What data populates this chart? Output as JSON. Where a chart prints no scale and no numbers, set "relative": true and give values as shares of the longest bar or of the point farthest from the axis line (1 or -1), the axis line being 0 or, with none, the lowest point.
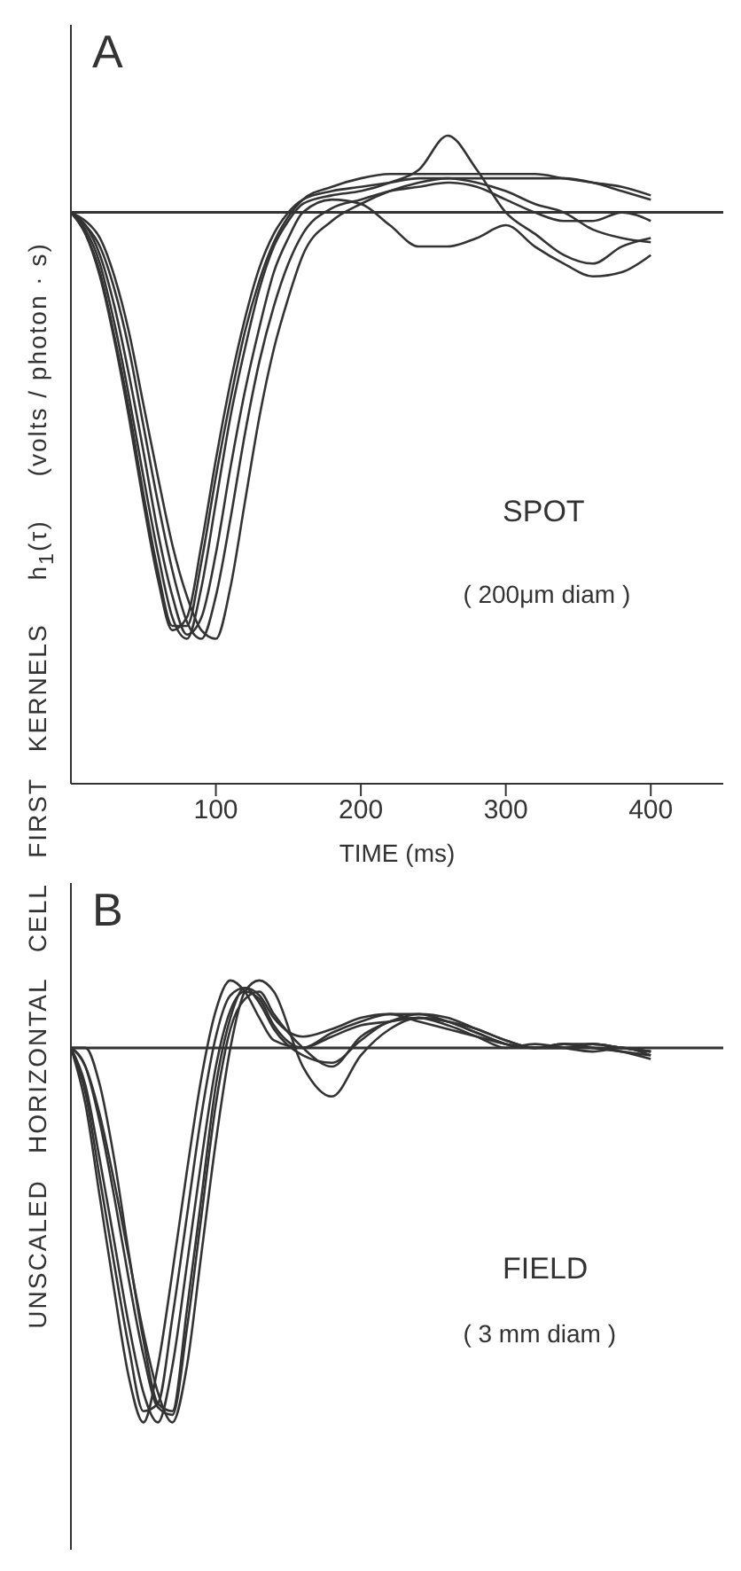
{
  "chart_data": [
    {
      "type": "line",
      "title": "A",
      "xlabel": "TIME (ms)",
      "ylabel": "UNSCALED   HORIZONTAL   CELL   FIRST   KERNELS     h$_{1}$(τ)     (volts / photon · s)",
      "relative": true,
      "marker": "none",
      "xlim": [
        0,
        450
      ],
      "xticks": [
        100,
        200,
        300,
        400
      ],
      "ref_lines": [
        {
          "axis": "y",
          "value": 0,
          "color": "#333333"
        }
      ],
      "annotations": [
        "SPOT",
        "( 200μm diam )"
      ],
      "x": [
        0,
        10,
        20,
        30,
        40,
        50,
        60,
        70,
        80,
        90,
        100,
        110,
        120,
        130,
        140,
        150,
        160,
        180,
        200,
        220,
        240,
        260,
        280,
        300,
        320,
        340,
        360,
        380,
        400
      ],
      "series": [
        {
          "color": "#333333",
          "values": [
            0,
            -0.05,
            -0.15,
            -0.3,
            -0.48,
            -0.68,
            -0.86,
            -0.98,
            -0.95,
            -0.78,
            -0.58,
            -0.4,
            -0.25,
            -0.13,
            -0.05,
            0,
            0.03,
            0.05,
            0.06,
            0.07,
            0.08,
            0.08,
            0.08,
            0.08,
            0.08,
            0.08,
            0.07,
            0.05,
            0.03
          ]
        },
        {
          "color": "#333333",
          "values": [
            0,
            -0.04,
            -0.12,
            -0.26,
            -0.43,
            -0.62,
            -0.8,
            -0.95,
            -1,
            -0.88,
            -0.68,
            -0.48,
            -0.32,
            -0.18,
            -0.08,
            -0.02,
            0.02,
            0.04,
            0.05,
            0.07,
            0.1,
            0.18,
            0.1,
            0.0,
            -0.05,
            -0.1,
            -0.12,
            -0.08,
            -0.06
          ]
        },
        {
          "color": "#333333",
          "values": [
            0,
            -0.03,
            -0.1,
            -0.22,
            -0.38,
            -0.56,
            -0.75,
            -0.9,
            -0.99,
            -0.95,
            -0.8,
            -0.6,
            -0.42,
            -0.27,
            -0.14,
            -0.06,
            0,
            0.03,
            0.02,
            -0.03,
            -0.08,
            -0.08,
            -0.06,
            -0.03,
            -0.08,
            -0.12,
            -0.15,
            -0.14,
            -0.1
          ]
        },
        {
          "color": "#333333",
          "values": [
            0,
            -0.03,
            -0.08,
            -0.18,
            -0.32,
            -0.5,
            -0.68,
            -0.84,
            -0.96,
            -1,
            -0.9,
            -0.72,
            -0.52,
            -0.35,
            -0.22,
            -0.12,
            -0.05,
            0.01,
            0.03,
            0.05,
            0.06,
            0.07,
            0.06,
            0.03,
            0.0,
            -0.02,
            -0.02,
            0.0,
            -0.02
          ]
        },
        {
          "color": "#333333",
          "values": [
            0,
            -0.02,
            -0.06,
            -0.15,
            -0.28,
            -0.45,
            -0.62,
            -0.78,
            -0.9,
            -0.98,
            -1,
            -0.88,
            -0.68,
            -0.48,
            -0.32,
            -0.2,
            -0.1,
            -0.02,
            0.02,
            0.05,
            0.07,
            0.08,
            0.07,
            0.05,
            0.02,
            0.0,
            -0.04,
            -0.06,
            -0.07
          ]
        },
        {
          "color": "#333333",
          "values": [
            0,
            -0.05,
            -0.14,
            -0.29,
            -0.46,
            -0.66,
            -0.84,
            -0.97,
            -0.97,
            -0.82,
            -0.62,
            -0.44,
            -0.28,
            -0.16,
            -0.07,
            -0.01,
            0.03,
            0.06,
            0.08,
            0.09,
            0.09,
            0.09,
            0.09,
            0.09,
            0.09,
            0.08,
            0.07,
            0.06,
            0.04
          ]
        }
      ]
    },
    {
      "type": "line",
      "title": "B",
      "relative": true,
      "marker": "none",
      "xlim": [
        0,
        450
      ],
      "tick_labels": false,
      "ref_lines": [
        {
          "axis": "y",
          "value": 0,
          "color": "#333333"
        }
      ],
      "annotations": [
        "FIELD",
        "( 3 mm diam )"
      ],
      "x": [
        0,
        10,
        20,
        30,
        40,
        50,
        60,
        70,
        80,
        90,
        100,
        110,
        120,
        130,
        140,
        160,
        180,
        200,
        220,
        240,
        260,
        280,
        300,
        320,
        340,
        360,
        380,
        400
      ],
      "series": [
        {
          "color": "#333333",
          "values": [
            0,
            -0.15,
            -0.4,
            -0.65,
            -0.88,
            -1,
            -0.85,
            -0.6,
            -0.33,
            -0.08,
            0.1,
            0.18,
            0.15,
            0.08,
            0.02,
            0.0,
            0.04,
            0.07,
            0.09,
            0.09,
            0.07,
            0.04,
            0.01,
            0,
            0.01,
            0,
            -0.01,
            -0.02
          ]
        },
        {
          "color": "#333333",
          "values": [
            0,
            -0.12,
            -0.35,
            -0.58,
            -0.8,
            -0.97,
            -0.95,
            -0.72,
            -0.45,
            -0.18,
            0.03,
            0.14,
            0.16,
            0.12,
            0.05,
            -0.02,
            -0.04,
            0.02,
            0.07,
            0.08,
            0.06,
            0.03,
            0,
            0.01,
            0,
            -0.01,
            0,
            -0.02
          ]
        },
        {
          "color": "#333333",
          "values": [
            0,
            -0.1,
            -0.3,
            -0.52,
            -0.74,
            -0.92,
            -1,
            -0.85,
            -0.58,
            -0.3,
            -0.05,
            0.1,
            0.15,
            0.13,
            0.06,
            0.0,
            0.03,
            0.06,
            0.07,
            0.08,
            0.07,
            0.04,
            0.01,
            0,
            0.01,
            0.01,
            0,
            -0.01
          ]
        },
        {
          "color": "#333333",
          "values": [
            0,
            -0.05,
            -0.2,
            -0.4,
            -0.62,
            -0.82,
            -0.96,
            -0.98,
            -0.75,
            -0.45,
            -0.15,
            0.05,
            0.13,
            0.15,
            0.09,
            0.0,
            -0.05,
            0.03,
            0.07,
            0.09,
            0.08,
            0.05,
            0.02,
            0,
            0,
            0.01,
            0,
            -0.01
          ]
        },
        {
          "color": "#333333",
          "values": [
            0,
            -0.05,
            -0.18,
            -0.36,
            -0.56,
            -0.76,
            -0.92,
            -1,
            -0.85,
            -0.55,
            -0.25,
            0.0,
            0.15,
            0.18,
            0.15,
            -0.05,
            -0.13,
            -0.02,
            0.05,
            0.08,
            0.07,
            0.05,
            0.02,
            0,
            0.01,
            0,
            -0.01,
            -0.03
          ]
        },
        {
          "color": "#333333",
          "values": [
            0,
            0,
            -0.1,
            -0.3,
            -0.55,
            -0.78,
            -0.95,
            -0.97,
            -0.7,
            -0.4,
            -0.1,
            0.08,
            0.16,
            0.14,
            0.08,
            0.03,
            0.05,
            0.08,
            0.09,
            0.07,
            0.05,
            0.03,
            0.01,
            0,
            0,
            0.01,
            0,
            -0.01
          ]
        }
      ]
    }
  ]
}
